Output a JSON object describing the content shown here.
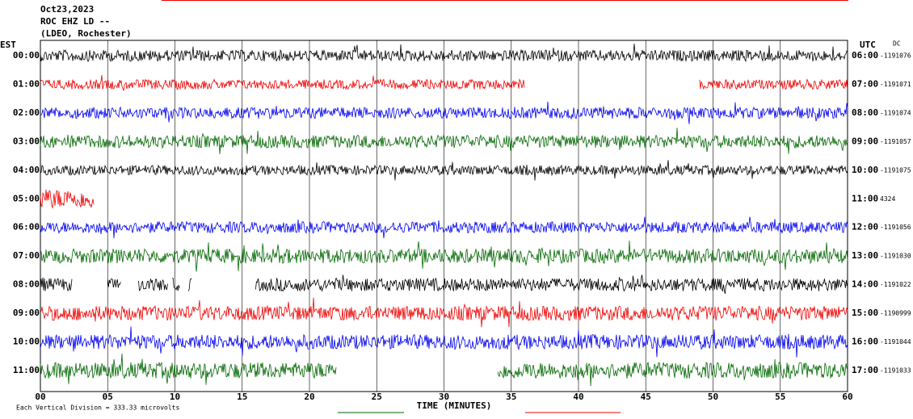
{
  "header": {
    "date": "Oct23,2023",
    "station": "ROC EHZ LD --",
    "network": "(LDEO, Rochester)"
  },
  "left_axis_title": "EST",
  "right_axis_title": "UTC",
  "right_note": "DC",
  "rows": [
    {
      "est": "00:00",
      "utc": "06:00",
      "value": "-1191076"
    },
    {
      "est": "01:00",
      "utc": "07:00",
      "value": "-1191071"
    },
    {
      "est": "02:00",
      "utc": "08:00",
      "value": "-1191074"
    },
    {
      "est": "03:00",
      "utc": "09:00",
      "value": "-1191057"
    },
    {
      "est": "04:00",
      "utc": "10:00",
      "value": "-1191075"
    },
    {
      "est": "05:00",
      "utc": "11:00",
      "value": "4324"
    },
    {
      "est": "06:00",
      "utc": "12:00",
      "value": "-1191056"
    },
    {
      "est": "07:00",
      "utc": "13:00",
      "value": "-1191030"
    },
    {
      "est": "08:00",
      "utc": "14:00",
      "value": "-1191022"
    },
    {
      "est": "09:00",
      "utc": "15:00",
      "value": "-1190999"
    },
    {
      "est": "10:00",
      "utc": "16:00",
      "value": "-1191044"
    },
    {
      "est": "11:00",
      "utc": "17:00",
      "value": "-1191033"
    }
  ],
  "x_axis": {
    "ticks": [
      "00",
      "05",
      "10",
      "15",
      "20",
      "25",
      "30",
      "35",
      "40",
      "45",
      "50",
      "55",
      "60"
    ],
    "label": "TIME (MINUTES)"
  },
  "footer": "Each Vertical Division =  333.33 microvolts"
}
